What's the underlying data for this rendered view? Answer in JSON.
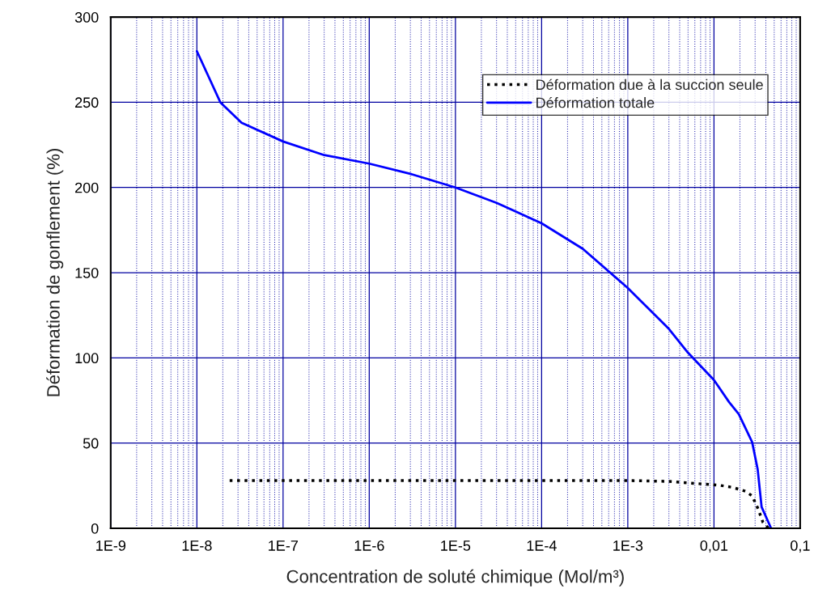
{
  "chart_data": {
    "type": "line",
    "xlabel": "Concentration de soluté chimique (Mol/m³)",
    "ylabel": "Déformation de gonflement (%)",
    "log": "x",
    "xlim": [
      1e-09,
      0.1
    ],
    "xticks": [
      {
        "value": 1e-09,
        "label": "1E-9"
      },
      {
        "value": 1e-08,
        "label": "1E-8"
      },
      {
        "value": 1e-07,
        "label": "1E-7"
      },
      {
        "value": 1e-06,
        "label": "1E-6"
      },
      {
        "value": 1e-05,
        "label": "1E-5"
      },
      {
        "value": 0.0001,
        "label": "1E-4"
      },
      {
        "value": 0.001,
        "label": "1E-3"
      },
      {
        "value": 0.01,
        "label": "0,01"
      },
      {
        "value": 0.1,
        "label": "0,1"
      },
      {
        "value": 2e-09,
        "label": null
      },
      {
        "value": 3e-09,
        "label": null
      },
      {
        "value": 4e-09,
        "label": null
      },
      {
        "value": 5e-09,
        "label": null
      },
      {
        "value": 6e-09,
        "label": null
      },
      {
        "value": 7e-09,
        "label": null
      },
      {
        "value": 8e-09,
        "label": null
      },
      {
        "value": 9e-09,
        "label": null
      },
      {
        "value": 2e-08,
        "label": null
      },
      {
        "value": 3e-08,
        "label": null
      },
      {
        "value": 4e-08,
        "label": null
      },
      {
        "value": 5e-08,
        "label": null
      },
      {
        "value": 6e-08,
        "label": null
      },
      {
        "value": 7e-08,
        "label": null
      },
      {
        "value": 8e-08,
        "label": null
      },
      {
        "value": 9e-08,
        "label": null
      },
      {
        "value": 2e-07,
        "label": null
      },
      {
        "value": 3e-07,
        "label": null
      },
      {
        "value": 4e-07,
        "label": null
      },
      {
        "value": 5e-07,
        "label": null
      },
      {
        "value": 6e-07,
        "label": null
      },
      {
        "value": 7e-07,
        "label": null
      },
      {
        "value": 8e-07,
        "label": null
      },
      {
        "value": 9e-07,
        "label": null
      },
      {
        "value": 2e-06,
        "label": null
      },
      {
        "value": 3e-06,
        "label": null
      },
      {
        "value": 4e-06,
        "label": null
      },
      {
        "value": 5e-06,
        "label": null
      },
      {
        "value": 6e-06,
        "label": null
      },
      {
        "value": 7e-06,
        "label": null
      },
      {
        "value": 8e-06,
        "label": null
      },
      {
        "value": 9e-06,
        "label": null
      },
      {
        "value": 2e-05,
        "label": null
      },
      {
        "value": 3e-05,
        "label": null
      },
      {
        "value": 4e-05,
        "label": null
      },
      {
        "value": 5e-05,
        "label": null
      },
      {
        "value": 6e-05,
        "label": null
      },
      {
        "value": 7e-05,
        "label": null
      },
      {
        "value": 8e-05,
        "label": null
      },
      {
        "value": 9e-05,
        "label": null
      },
      {
        "value": 0.0002,
        "label": null
      },
      {
        "value": 0.0003,
        "label": null
      },
      {
        "value": 0.0004,
        "label": null
      },
      {
        "value": 0.0005,
        "label": null
      },
      {
        "value": 0.0006,
        "label": null
      },
      {
        "value": 0.0007,
        "label": null
      },
      {
        "value": 0.0008,
        "label": null
      },
      {
        "value": 0.0009,
        "label": null
      },
      {
        "value": 0.002,
        "label": null
      },
      {
        "value": 0.003,
        "label": null
      },
      {
        "value": 0.004,
        "label": null
      },
      {
        "value": 0.005,
        "label": null
      },
      {
        "value": 0.006,
        "label": null
      },
      {
        "value": 0.007,
        "label": null
      },
      {
        "value": 0.008,
        "label": null
      },
      {
        "value": 0.009,
        "label": null
      },
      {
        "value": 0.02,
        "label": null
      },
      {
        "value": 0.03,
        "label": null
      },
      {
        "value": 0.04,
        "label": null
      },
      {
        "value": 0.05,
        "label": null
      },
      {
        "value": 0.06,
        "label": null
      },
      {
        "value": 0.07,
        "label": null
      },
      {
        "value": 0.08,
        "label": null
      },
      {
        "value": 0.09,
        "label": null
      }
    ],
    "ylim": [
      0,
      300
    ],
    "yticks": [
      0,
      50,
      100,
      150,
      200,
      250,
      300
    ],
    "grid": true,
    "legend": "top right",
    "series": [
      {
        "name": "Déformation due à la succion seule",
        "color": "#000000",
        "line_style": "dotted",
        "x": [
          2.4e-08,
          1e-07,
          1e-06,
          1e-05,
          0.0001,
          0.001,
          0.003,
          0.0117,
          0.0164,
          0.0232,
          0.0277,
          0.0325,
          0.037,
          0.043
        ],
        "values": [
          28,
          28,
          28,
          28,
          28,
          28,
          27.5,
          25.2,
          24,
          21.7,
          19,
          11.4,
          3.5,
          0
        ]
      },
      {
        "name": "Déformation totale",
        "color": "#0000ff",
        "line_style": "solid",
        "x": [
          1e-08,
          1.87e-08,
          3.3e-08,
          1e-07,
          3e-07,
          1e-06,
          3e-06,
          1e-05,
          3e-05,
          0.0001,
          0.0003,
          0.001,
          0.003,
          0.005,
          0.01,
          0.015,
          0.0194,
          0.0277,
          0.0321,
          0.0357,
          0.046
        ],
        "values": [
          280,
          250,
          238,
          227,
          219,
          214,
          208,
          200,
          191,
          179,
          164,
          141,
          117,
          103,
          87,
          74,
          67,
          50.6,
          34.8,
          12.5,
          0
        ]
      }
    ]
  }
}
